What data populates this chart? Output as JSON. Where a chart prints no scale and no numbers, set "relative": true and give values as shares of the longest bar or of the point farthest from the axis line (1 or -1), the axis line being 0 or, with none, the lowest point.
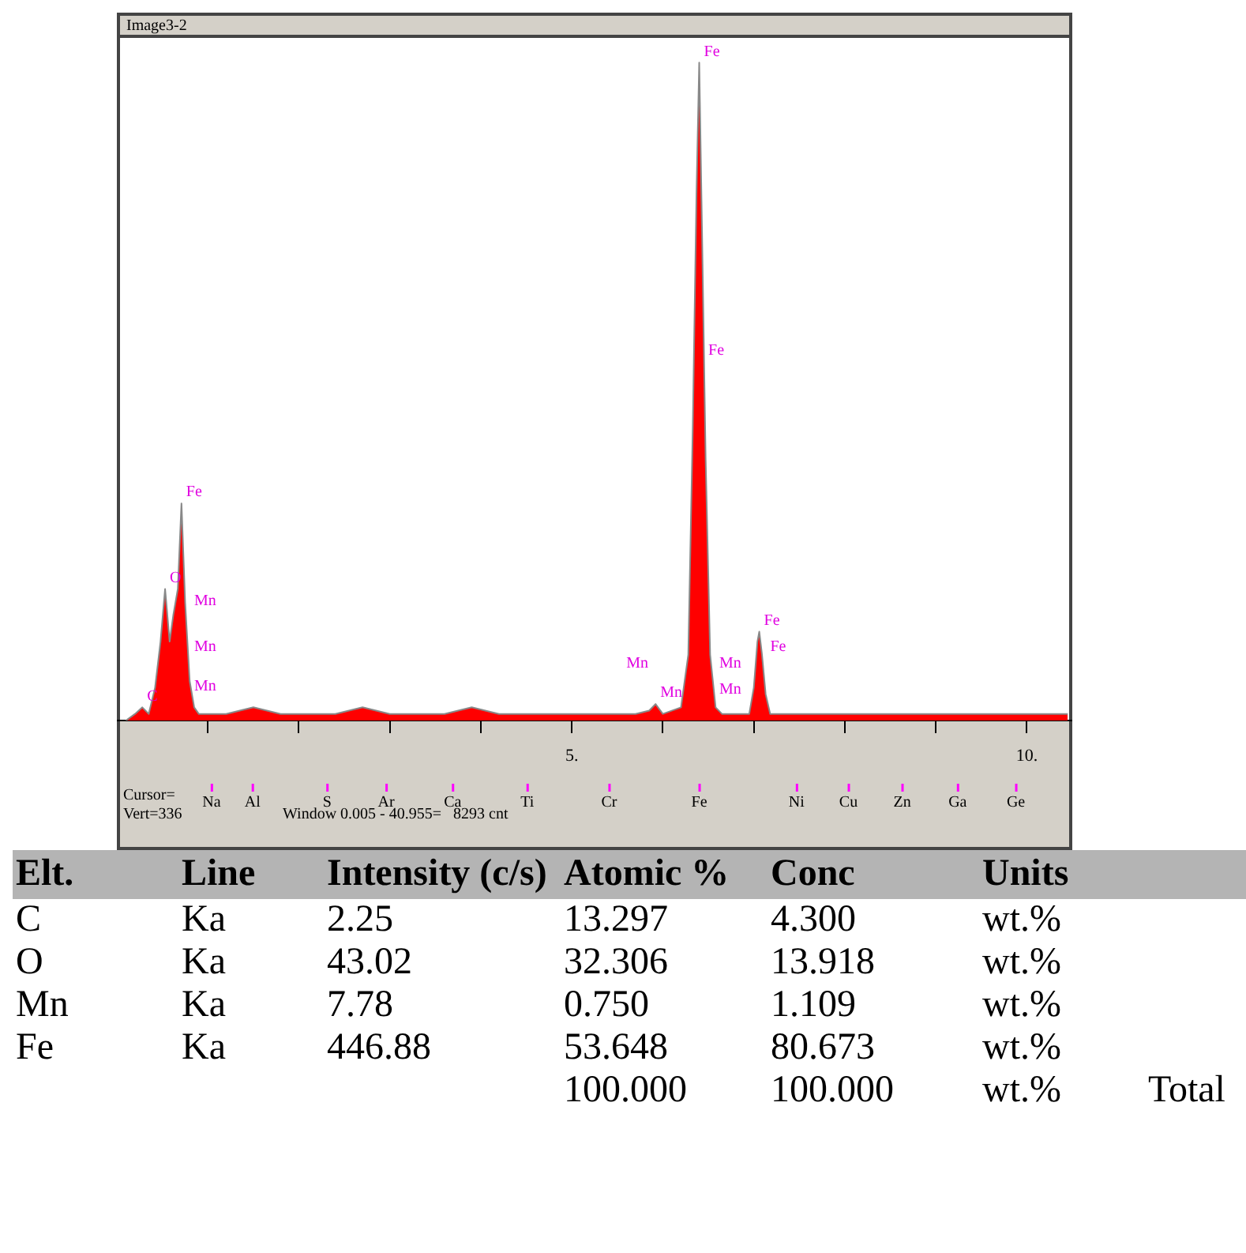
{
  "chart_data": [
    {
      "type": "area",
      "title": "Image3-2",
      "relative": true,
      "xlim": [
        0,
        10.5
      ],
      "xticks": [
        {
          "value": 1,
          "label": null
        },
        {
          "value": 2,
          "label": null
        },
        {
          "value": 3,
          "label": null
        },
        {
          "value": 4,
          "label": null
        },
        {
          "value": 5,
          "label": "5."
        },
        {
          "value": 6,
          "label": null
        },
        {
          "value": 7,
          "label": null
        },
        {
          "value": 8,
          "label": null
        },
        {
          "value": 9,
          "label": null
        },
        {
          "value": 10,
          "label": "10."
        }
      ],
      "grid": false,
      "legend": false,
      "series": [
        {
          "color": "#ff0000",
          "x": [
            0.1,
            0.2,
            0.28,
            0.35,
            0.42,
            0.48,
            0.53,
            0.58,
            0.62,
            0.67,
            0.71,
            0.75,
            0.8,
            0.85,
            0.9,
            1.2,
            1.5,
            1.8,
            2.1,
            2.4,
            2.7,
            3.0,
            3.3,
            3.6,
            3.9,
            4.2,
            4.5,
            4.8,
            5.1,
            5.4,
            5.7,
            5.85,
            5.92,
            6.0,
            6.2,
            6.28,
            6.33,
            6.37,
            6.4,
            6.43,
            6.47,
            6.52,
            6.58,
            6.65,
            6.95,
            7.0,
            7.04,
            7.06,
            7.09,
            7.13,
            7.18,
            7.5,
            7.8,
            8.1,
            8.4,
            8.7,
            9.0,
            9.3,
            9.6,
            9.9,
            10.2,
            10.45
          ],
          "values": [
            0,
            0.01,
            0.02,
            0.01,
            0.05,
            0.12,
            0.2,
            0.12,
            0.16,
            0.2,
            0.33,
            0.18,
            0.06,
            0.02,
            0.01,
            0.01,
            0.02,
            0.01,
            0.01,
            0.01,
            0.02,
            0.01,
            0.01,
            0.01,
            0.02,
            0.01,
            0.01,
            0.01,
            0.01,
            0.01,
            0.01,
            0.015,
            0.025,
            0.01,
            0.02,
            0.1,
            0.45,
            0.8,
            1.0,
            0.75,
            0.4,
            0.1,
            0.02,
            0.01,
            0.01,
            0.05,
            0.12,
            0.135,
            0.1,
            0.04,
            0.01,
            0.01,
            0.01,
            0.01,
            0.01,
            0.01,
            0.01,
            0.01,
            0.01,
            0.01,
            0.01,
            0.01
          ]
        }
      ],
      "annotations": [
        {
          "text": "C",
          "x": 0.28,
          "y": 0.02
        },
        {
          "text": "O",
          "x": 0.53,
          "y": 0.2
        },
        {
          "text": "Fe",
          "x": 0.71,
          "y": 0.33
        },
        {
          "text": "Fe",
          "x": 6.4,
          "y": 1.0
        },
        {
          "text": "Mn",
          "x": 5.92,
          "y": 0.025
        },
        {
          "text": "Fe",
          "x": 7.06,
          "y": 0.135
        },
        "Mn",
        "Mn",
        "Mn",
        "Fe",
        "Mn",
        "Mn",
        "Mn",
        "Fe",
        "Na",
        "Al",
        "S",
        "Ar",
        "Ca",
        "Ti",
        "Cr",
        "Fe",
        "Ni",
        "Cu",
        "Zn",
        "Ga",
        "Ge",
        "Cursor=",
        "Vert=336",
        "Window 0.005 - 40.955=   8293 cnt"
      ]
    },
    {
      "type": "other",
      "annotations": [
        "Elt.",
        "Line",
        "Intensity (c/s)",
        "Atomic %",
        "Conc",
        "Units",
        "C",
        "Ka",
        "2.25",
        "13.297",
        "4.300",
        "wt.%",
        "O",
        "Ka",
        "43.02",
        "32.306",
        "13.918",
        "wt.%",
        "Mn",
        "Ka",
        "7.78",
        "0.750",
        "1.109",
        "wt.%",
        "Fe",
        "Ka",
        "446.88",
        "53.648",
        "80.673",
        "wt.%",
        "100.000",
        "100.000",
        "wt.%",
        "Total"
      ]
    }
  ]
}
